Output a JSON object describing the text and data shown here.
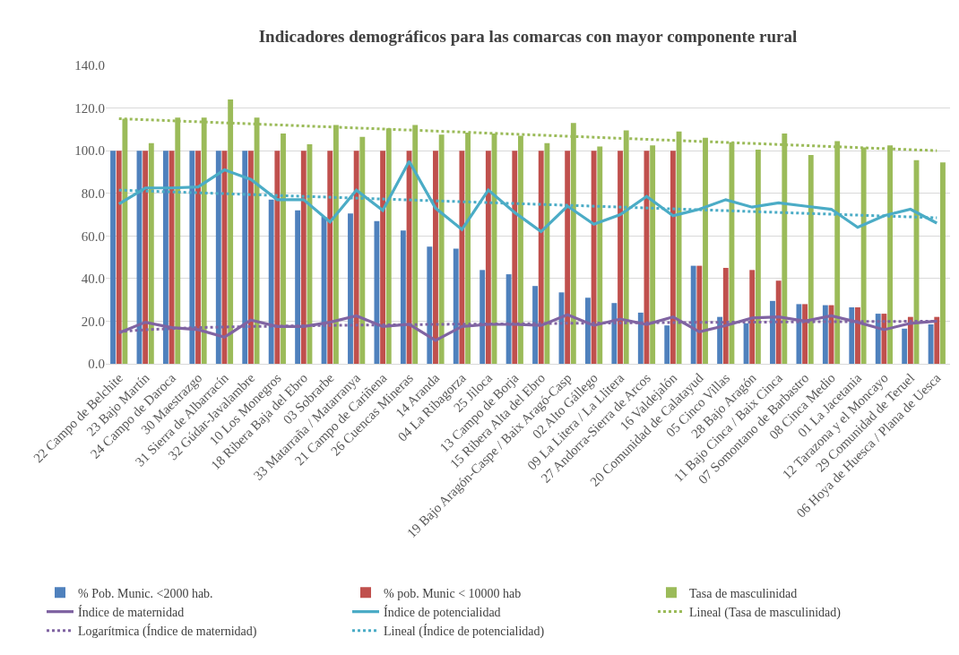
{
  "chart_data": {
    "type": "bar",
    "title": "Indicadores demográficos para las comarcas con mayor componente rural",
    "categories": [
      "22 Campo de Belchite",
      "23 Bajo Martín",
      "24 Campo de Daroca",
      "30 Maestrazgo",
      "31 Sierra de Albarracín",
      "32 Gúdar-Javalambre",
      "10 Los Monegros",
      "18 Ribera Baja del Ebro",
      "03 Sobrarbe",
      "33 Matarraña / Matarranya",
      "21 Campo de Cariñena",
      "26 Cuencas Mineras",
      "14 Aranda",
      "04 La Ribagorza",
      "25 Jiloca",
      "13 Campo de Borja",
      "15 Ribera Alta del Ebro",
      "19 Bajo Aragón-Caspe / Baix Aragó-Casp",
      "02 Alto Gállego",
      "09 La Litera / La Llitera",
      "27 Andorra-Sierra de Arcos",
      "16 Valdejalón",
      "20 Comunidad de Calatayud",
      "05 Cinco Villas",
      "28 Bajo Aragón",
      "11 Bajo Cinca / Baix Cinca",
      "07 Somontano de Barbastro",
      "08 Cinca Medio",
      "01 La Jacetania",
      "12 Tarazona y el Moncayo",
      "29 Comunidad de Teruel",
      "06 Hoya de Huesca / Plana de Uesca"
    ],
    "series": [
      {
        "name": "% Pob. Munic. <2000 hab.",
        "color": "#4f81bd",
        "values": [
          100,
          100,
          100,
          100,
          100,
          100,
          77,
          72,
          69,
          70.5,
          67,
          62.5,
          55,
          54,
          44,
          42,
          36.5,
          33.5,
          31,
          28.5,
          24,
          18,
          46,
          22,
          19,
          29.5,
          28,
          27.5,
          26.5,
          23.5,
          16.5,
          18.5
        ]
      },
      {
        "name": "% pob. Munic < 10000 hab",
        "color": "#c0504d",
        "values": [
          100,
          100,
          100,
          100,
          100,
          100,
          100,
          100,
          100,
          100,
          100,
          100,
          100,
          100,
          100,
          100,
          100,
          100,
          100,
          100,
          100,
          100,
          46,
          45,
          44,
          39,
          28,
          27.5,
          26.5,
          23.5,
          22,
          22
        ]
      },
      {
        "name": "Tasa de masculinidad",
        "color": "#9bbb59",
        "values": [
          115,
          103.5,
          115.5,
          115.5,
          124,
          115.5,
          108,
          103,
          112,
          106.5,
          110.5,
          112,
          107.5,
          108.5,
          108,
          107,
          103.5,
          113,
          102,
          109.5,
          102.5,
          109,
          106,
          104,
          100.5,
          108,
          98,
          104.5,
          101.5,
          102.5,
          95.5,
          94.5
        ]
      },
      {
        "name": "Índice de maternidad",
        "type": "line",
        "color": "#8064a2",
        "line_style": "solid",
        "values": [
          14.5,
          19.5,
          17,
          16,
          12.5,
          20.5,
          17.5,
          17.5,
          19.5,
          22.5,
          17.5,
          18.5,
          11,
          17.5,
          18.5,
          18.5,
          18,
          23,
          18,
          21,
          18.5,
          22,
          15,
          18,
          21.5,
          22,
          20,
          22.5,
          19.5,
          16,
          19,
          20
        ]
      },
      {
        "name": "Índice de potencialidad",
        "type": "line",
        "color": "#4bacc6",
        "line_style": "solid",
        "values": [
          75,
          82.5,
          82.5,
          83,
          91,
          86.5,
          77,
          77,
          66.5,
          81.5,
          72,
          95,
          73,
          63,
          81.5,
          71,
          62,
          74,
          65.5,
          70,
          78.5,
          69.5,
          72.5,
          77,
          73.5,
          75.5,
          74,
          72.5,
          64,
          69.5,
          72.5,
          66
        ]
      },
      {
        "name": "Lineal (Tasa de masculinidad)",
        "type": "line",
        "color": "#9bbb59",
        "line_style": "dotted",
        "x": [
          "22 Campo de Belchite",
          "06 Hoya de Huesca / Plana de Uesca"
        ],
        "values": [
          115,
          100
        ]
      },
      {
        "name": "Logarítmica (Índice de maternidad)",
        "type": "line",
        "color": "#8064a2",
        "line_style": "dotted",
        "x": [
          "22 Campo de Belchite",
          "23 Bajo Martín",
          "24 Campo de Daroca",
          "30 Maestrazgo",
          "32 Gúdar-Javalambre",
          "03 Sobrarbe",
          "14 Aranda",
          "19 Bajo Aragón-Caspe / Baix Aragó-Casp",
          "05 Cinco Villas",
          "06 Hoya de Huesca / Plana de Uesca"
        ],
        "values": [
          15,
          16,
          16.5,
          17,
          17.5,
          18,
          18.5,
          19,
          19.5,
          20
        ]
      },
      {
        "name": "Lineal (Índice de potencialidad)",
        "type": "line",
        "color": "#4bacc6",
        "line_style": "dotted",
        "x": [
          "22 Campo de Belchite",
          "06 Hoya de Huesca / Plana de Uesca"
        ],
        "values": [
          81.5,
          68.5
        ]
      }
    ],
    "ylim": [
      0,
      140
    ],
    "yticks": [
      {
        "value": 0,
        "label": "0.0"
      },
      {
        "value": 20,
        "label": "20.0"
      },
      {
        "value": 40,
        "label": "40.0"
      },
      {
        "value": 60,
        "label": "60.0"
      },
      {
        "value": 80,
        "label": "80.0"
      },
      {
        "value": 100,
        "label": "100.0"
      },
      {
        "value": 120,
        "label": "120.0"
      },
      {
        "value": 140,
        "label": "140.0"
      }
    ],
    "grid": "y",
    "legend": "bottom",
    "marker": "none"
  }
}
